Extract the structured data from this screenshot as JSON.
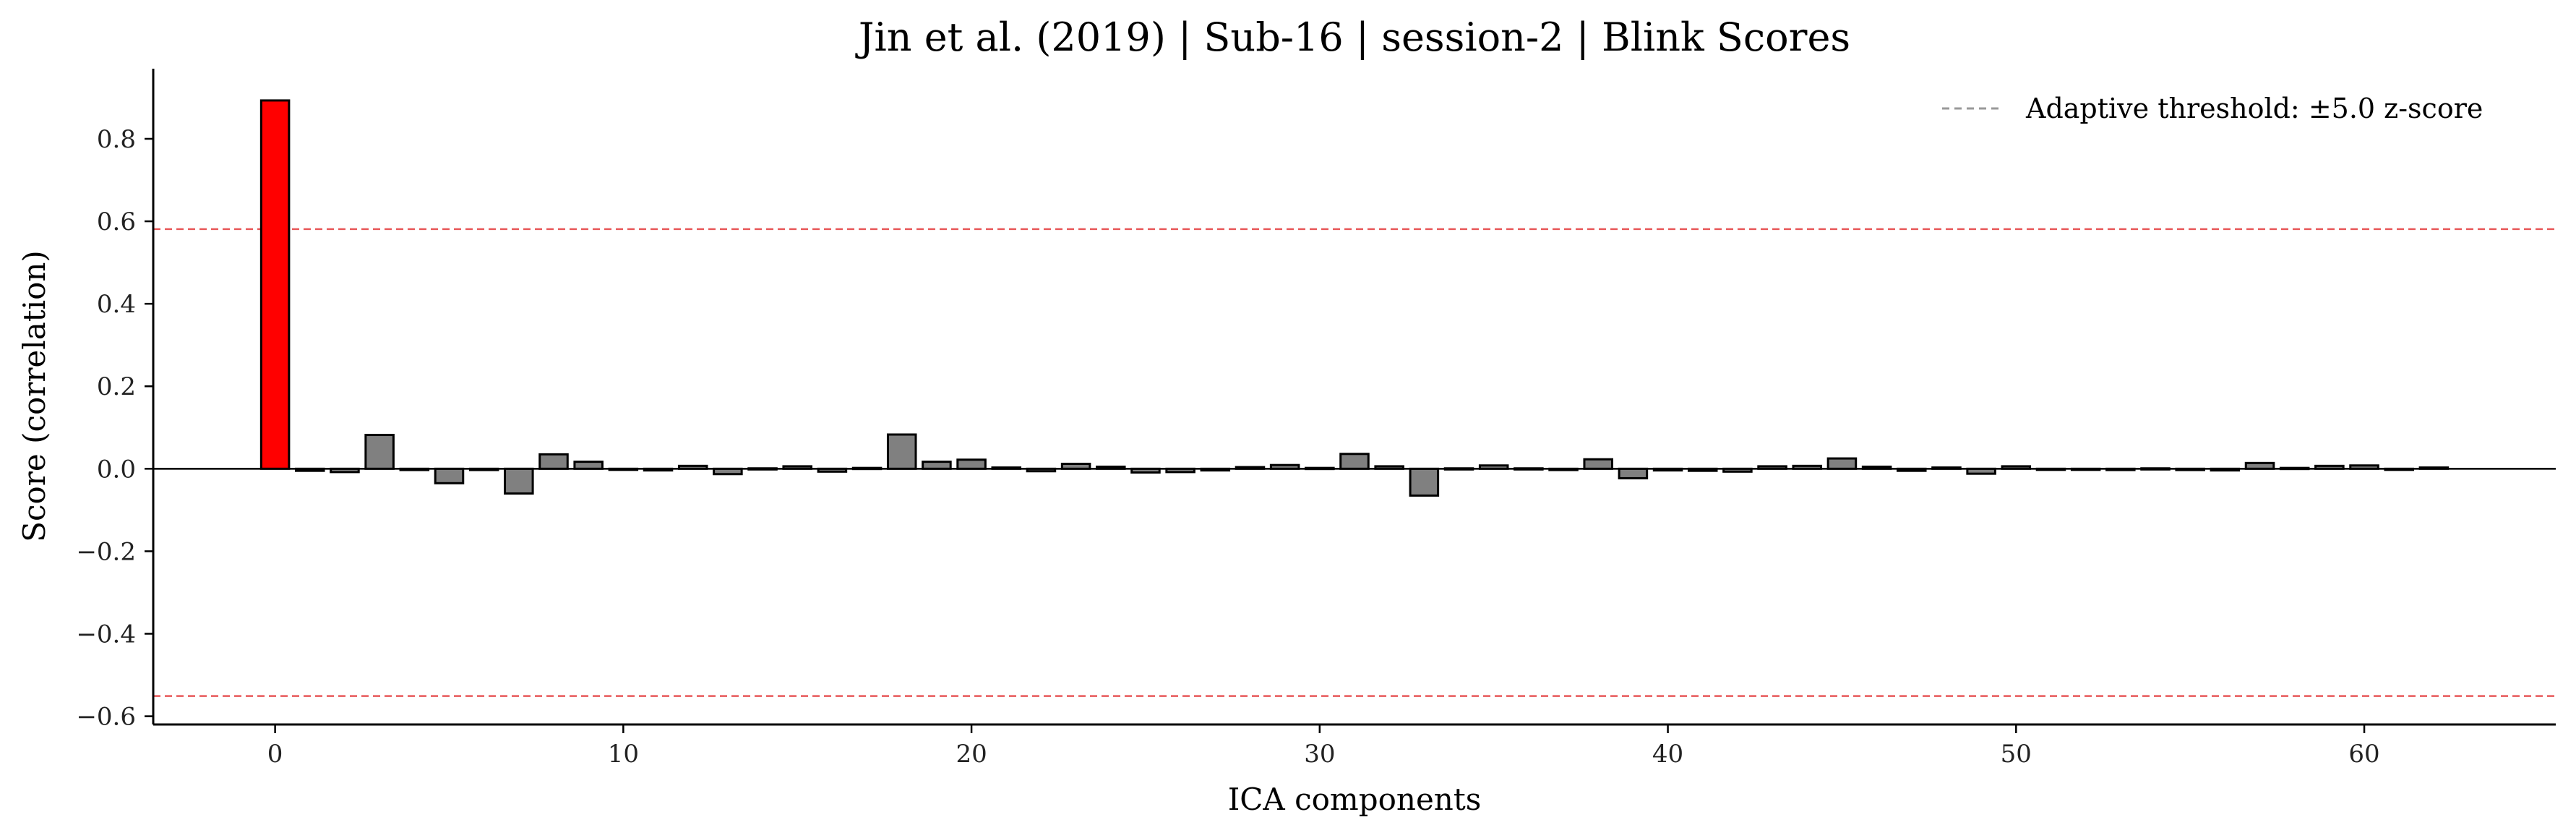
{
  "chart_data": {
    "type": "bar",
    "title": "Jin et al. (2019) | Sub-16 | session-2 | Blink Scores",
    "xlabel": "ICA components",
    "ylabel": "Score (correlation)",
    "xlim": [
      -3.5,
      65.5
    ],
    "ylim": [
      -0.62,
      0.97
    ],
    "xticks": [
      0,
      10,
      20,
      30,
      40,
      50,
      60
    ],
    "yticks": [
      -0.6,
      -0.4,
      -0.2,
      0.0,
      0.2,
      0.4,
      0.6,
      0.8
    ],
    "ytick_labels": [
      "−0.6",
      "−0.4",
      "−0.2",
      "0.0",
      "0.2",
      "0.4",
      "0.6",
      "0.8"
    ],
    "x": [
      0,
      1,
      2,
      3,
      4,
      5,
      6,
      7,
      8,
      9,
      10,
      11,
      12,
      13,
      14,
      15,
      16,
      17,
      18,
      19,
      20,
      21,
      22,
      23,
      24,
      25,
      26,
      27,
      28,
      29,
      30,
      31,
      32,
      33,
      34,
      35,
      36,
      37,
      38,
      39,
      40,
      41,
      42,
      43,
      44,
      45,
      46,
      47,
      48,
      49,
      50,
      51,
      52,
      53,
      54,
      55,
      56,
      57,
      58,
      59,
      60,
      61,
      62
    ],
    "values": [
      0.893,
      -0.005,
      -0.008,
      0.082,
      -0.003,
      -0.035,
      -0.003,
      -0.06,
      0.035,
      0.017,
      -0.002,
      -0.004,
      0.007,
      -0.013,
      0.001,
      0.006,
      -0.007,
      0.002,
      0.083,
      0.017,
      0.022,
      0.003,
      -0.006,
      0.012,
      0.005,
      -0.009,
      -0.008,
      -0.004,
      0.004,
      0.009,
      0.002,
      0.036,
      0.006,
      -0.065,
      0.001,
      0.008,
      0.001,
      -0.003,
      0.023,
      -0.023,
      -0.004,
      -0.005,
      -0.007,
      0.006,
      0.007,
      0.025,
      0.005,
      -0.005,
      0.003,
      -0.012,
      0.006,
      -0.002,
      -0.002,
      -0.003,
      0.001,
      -0.003,
      -0.004,
      0.014,
      0.002,
      0.007,
      0.008,
      -0.002,
      0.003
    ],
    "highlighted_index": 0,
    "colors": {
      "highlight": "#ff0000",
      "bar": "#808080",
      "bar_edge": "#000000",
      "threshold": "#e8595a",
      "legend_line": "#999999"
    },
    "thresholds": [
      0.581,
      -0.551
    ],
    "zero_line": 0.0,
    "legend": {
      "placement": "top-right",
      "entries": [
        "Adaptive threshold: ±5.0 z-score"
      ]
    },
    "grid": false
  }
}
